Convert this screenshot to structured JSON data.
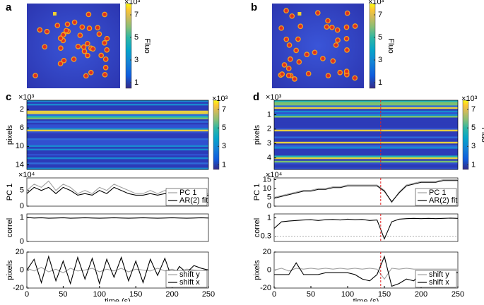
{
  "chart_data": [
    {
      "type": "image",
      "panel": "a",
      "colorbar": {
        "label": "Fluo",
        "exponent": "×10³",
        "lim": [
          0.5,
          8
        ],
        "ticks": [
          1,
          3,
          5,
          7
        ]
      }
    },
    {
      "type": "image",
      "panel": "b",
      "colorbar": {
        "label": "Fluo",
        "exponent": "×10³",
        "lim": [
          0.5,
          8
        ],
        "ticks": [
          1,
          3,
          5,
          7
        ]
      }
    },
    {
      "type": "heatmap",
      "panel": "c",
      "ylabel": "pixels",
      "y_exponent": "×10³",
      "ylim": [
        0,
        15
      ],
      "y_reversed": true,
      "yticks": [
        2,
        6,
        10,
        14
      ],
      "xlim": [
        0,
        250
      ],
      "colorbar": {
        "exponent": "×10³",
        "lim": [
          0.5,
          8
        ],
        "ticks": [
          1,
          3,
          5,
          7
        ]
      }
    },
    {
      "type": "line",
      "ylabel": "PC 1",
      "y_exponent": "×10⁴",
      "xlim": [
        0,
        250
      ],
      "ylim": [
        0,
        9
      ],
      "yticks": [
        0,
        5
      ],
      "legend": "lower right",
      "x": [
        0,
        10,
        20,
        30,
        40,
        50,
        60,
        70,
        80,
        90,
        100,
        110,
        120,
        130,
        140,
        150,
        160,
        170,
        180,
        190,
        200,
        210,
        220,
        230,
        240,
        250
      ],
      "series": [
        {
          "name": "PC 1",
          "color": "#a0a0a0",
          "values": [
            5,
            7,
            6,
            8,
            5,
            7,
            6,
            4,
            5,
            4,
            6,
            5,
            7,
            6,
            5,
            4,
            4,
            5,
            4,
            5,
            4,
            4,
            5,
            4,
            4,
            4
          ]
        },
        {
          "name": "AR(2) fit",
          "color": "#000000",
          "values": [
            4,
            6,
            5,
            6,
            4,
            6,
            5,
            3.5,
            4,
            3.5,
            5,
            4,
            6,
            5,
            4,
            3.5,
            3.5,
            4,
            3.5,
            4,
            3.5,
            3.5,
            4,
            3.5,
            3.5,
            3.5
          ]
        }
      ]
    },
    {
      "type": "line",
      "ylabel": "correl",
      "xlim": [
        0,
        250
      ],
      "ylim": [
        0,
        1.15
      ],
      "yticks": [
        0,
        1
      ],
      "x": [
        0,
        10,
        20,
        30,
        40,
        50,
        60,
        70,
        80,
        90,
        100,
        110,
        120,
        130,
        140,
        150,
        160,
        170,
        180,
        190,
        200,
        210,
        220,
        230,
        240,
        250
      ],
      "series": [
        {
          "color": "#000000",
          "values": [
            1,
            0.98,
            0.99,
            0.97,
            0.98,
            0.99,
            0.97,
            0.98,
            0.99,
            0.98,
            0.97,
            0.98,
            0.99,
            0.98,
            0.97,
            0.98,
            0.99,
            0.98,
            0.97,
            0.98,
            0.99,
            0.98,
            0.97,
            0.98,
            0.99,
            0.98
          ]
        }
      ]
    },
    {
      "type": "line",
      "ylabel": "pixels",
      "xlabel": "time (s)",
      "xlim": [
        0,
        250
      ],
      "xticks": [
        0,
        50,
        100,
        150,
        200,
        250
      ],
      "ylim": [
        -20,
        20
      ],
      "yticks": [
        -20,
        0,
        20
      ],
      "legend": "lower right",
      "x": [
        0,
        10,
        20,
        30,
        40,
        50,
        60,
        70,
        80,
        90,
        100,
        110,
        120,
        130,
        140,
        150,
        160,
        170,
        180,
        190,
        200,
        210,
        220,
        230,
        240,
        250
      ],
      "series": [
        {
          "name": "shift y",
          "color": "#a0a0a0",
          "values": [
            2,
            -1,
            3,
            -2,
            1,
            -3,
            2,
            -1,
            0,
            2,
            -2,
            1,
            -1,
            2,
            -2,
            1,
            0,
            -1,
            2,
            -1,
            1,
            -2,
            1,
            0,
            -1,
            1
          ]
        },
        {
          "name": "shift x",
          "color": "#000000",
          "values": [
            0,
            12,
            -14,
            15,
            -12,
            10,
            -15,
            14,
            -10,
            13,
            -15,
            12,
            -8,
            14,
            -12,
            10,
            -14,
            12,
            -6,
            13,
            -10,
            4,
            -3,
            5,
            2,
            0
          ]
        }
      ]
    },
    {
      "type": "heatmap",
      "panel": "d",
      "ylabel": "pixels",
      "y_exponent": "×10³",
      "ylim": [
        0,
        4.8
      ],
      "y_reversed": true,
      "yticks": [
        1,
        2,
        3,
        4
      ],
      "xlim": [
        0,
        250
      ],
      "vline": {
        "value": 145,
        "color": "#e02020"
      },
      "colorbar": {
        "label": "Fluo",
        "exponent": "×10³",
        "lim": [
          0.5,
          8
        ],
        "ticks": [
          1,
          3,
          5,
          7
        ]
      }
    },
    {
      "type": "line",
      "ylabel": "PC 1",
      "y_exponent": "×10⁴",
      "xlim": [
        0,
        250
      ],
      "ylim": [
        0,
        16
      ],
      "yticks": [
        0,
        5,
        10,
        15
      ],
      "legend": "lower right",
      "vline": {
        "value": 145,
        "color": "#e02020"
      },
      "x": [
        0,
        10,
        20,
        30,
        40,
        50,
        60,
        70,
        80,
        90,
        100,
        110,
        120,
        130,
        140,
        150,
        160,
        170,
        180,
        190,
        200,
        210,
        220,
        230,
        240,
        250
      ],
      "series": [
        {
          "name": "PC 1",
          "color": "#a0a0a0",
          "values": [
            5,
            6,
            7,
            8,
            9,
            9,
            10,
            10,
            11,
            11,
            12,
            12,
            12,
            12,
            12,
            9,
            2,
            8,
            12,
            13,
            14,
            14,
            14,
            15,
            15,
            15
          ]
        },
        {
          "name": "AR(2) fit",
          "color": "#000000",
          "values": [
            4.5,
            5.5,
            6.5,
            7.5,
            8.5,
            8.5,
            9.5,
            9.5,
            10.5,
            10.5,
            11.5,
            11.5,
            11.5,
            11.5,
            11.5,
            8.5,
            2.5,
            7.5,
            11.5,
            12.5,
            13.5,
            13.5,
            13.5,
            14.5,
            14.5,
            14.5
          ]
        }
      ]
    },
    {
      "type": "line",
      "ylabel": "correl",
      "xlim": [
        0,
        250
      ],
      "ylim": [
        0.1,
        1.15
      ],
      "yticks": [
        0.3,
        1
      ],
      "vline": {
        "value": 145,
        "color": "#e02020"
      },
      "hline": {
        "value": 0.3,
        "color": "#b0b0b0"
      },
      "x": [
        0,
        10,
        20,
        30,
        40,
        50,
        60,
        70,
        80,
        90,
        100,
        110,
        120,
        130,
        140,
        150,
        160,
        170,
        180,
        190,
        200,
        210,
        220,
        230,
        240,
        250
      ],
      "series": [
        {
          "color": "#000000",
          "values": [
            0.6,
            0.85,
            0.88,
            0.9,
            0.92,
            0.93,
            0.9,
            0.93,
            0.94,
            0.92,
            0.95,
            0.93,
            0.94,
            0.9,
            0.92,
            0.2,
            0.85,
            0.95,
            0.97,
            0.98,
            0.97,
            0.98,
            0.97,
            0.98,
            0.99,
            0.98
          ]
        }
      ]
    },
    {
      "type": "line",
      "ylabel": "pixels",
      "xlabel": "time (s)",
      "xlim": [
        0,
        250
      ],
      "xticks": [
        0,
        50,
        100,
        150,
        200,
        250
      ],
      "ylim": [
        -20,
        20
      ],
      "yticks": [
        -20,
        0,
        20
      ],
      "legend": "lower right",
      "vline": {
        "value": 145,
        "color": "#e02020"
      },
      "x": [
        0,
        10,
        20,
        30,
        40,
        50,
        60,
        70,
        80,
        90,
        100,
        110,
        120,
        130,
        140,
        150,
        160,
        170,
        180,
        190,
        200,
        210,
        220,
        230,
        240,
        250
      ],
      "series": [
        {
          "name": "shift y",
          "color": "#a0a0a0",
          "values": [
            0,
            2,
            -1,
            2,
            1,
            2,
            1,
            2,
            1,
            2,
            1,
            2,
            1,
            2,
            1,
            -10,
            2,
            1,
            2,
            1,
            1,
            1,
            1,
            1,
            1,
            1
          ]
        },
        {
          "name": "shift x",
          "color": "#000000",
          "values": [
            -5,
            -5,
            -5,
            8,
            -5,
            -5,
            -5,
            -3,
            -3,
            -3,
            -3,
            -5,
            -10,
            -12,
            -5,
            15,
            -18,
            -15,
            -10,
            -12,
            -3,
            -3,
            -3,
            -3,
            -3,
            -3
          ]
        }
      ]
    }
  ]
}
